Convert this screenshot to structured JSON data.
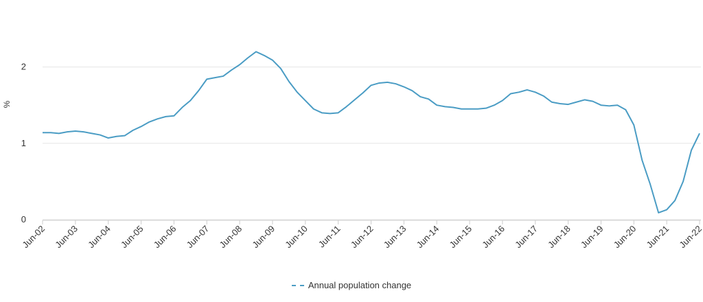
{
  "chart_data": {
    "type": "line",
    "title": "",
    "xlabel": "",
    "ylabel": "%",
    "ylim": [
      0,
      2.5
    ],
    "y_ticks": [
      0,
      1,
      2
    ],
    "y_tick_labels": [
      "0",
      "1",
      "2"
    ],
    "x_tick_labels": [
      "Jun-02",
      "Jun-03",
      "Jun-04",
      "Jun-05",
      "Jun-06",
      "Jun-07",
      "Jun-08",
      "Jun-09",
      "Jun-10",
      "Jun-11",
      "Jun-12",
      "Jun-13",
      "Jun-14",
      "Jun-15",
      "Jun-16",
      "Jun-17",
      "Jun-18",
      "Jun-19",
      "Jun-20",
      "Jun-21",
      "Jun-22"
    ],
    "x_start": "Jun-02",
    "x_end": "Jun-22",
    "grid": "horizontal",
    "legend_position": "bottom-center",
    "series": [
      {
        "name": "Annual population change",
        "color": "#4a9cc4",
        "values": [
          1.14,
          1.14,
          1.13,
          1.15,
          1.16,
          1.15,
          1.13,
          1.11,
          1.07,
          1.09,
          1.1,
          1.17,
          1.22,
          1.28,
          1.32,
          1.35,
          1.36,
          1.47,
          1.56,
          1.69,
          1.84,
          1.86,
          1.88,
          1.96,
          2.03,
          2.12,
          2.2,
          2.15,
          2.09,
          1.98,
          1.81,
          1.67,
          1.56,
          1.45,
          1.4,
          1.39,
          1.4,
          1.48,
          1.57,
          1.66,
          1.76,
          1.79,
          1.8,
          1.78,
          1.74,
          1.69,
          1.61,
          1.58,
          1.5,
          1.48,
          1.47,
          1.45,
          1.45,
          1.45,
          1.46,
          1.5,
          1.56,
          1.65,
          1.67,
          1.7,
          1.67,
          1.62,
          1.54,
          1.52,
          1.51,
          1.54,
          1.57,
          1.55,
          1.5,
          1.49,
          1.5,
          1.44,
          1.24,
          0.78,
          0.46,
          0.09,
          0.13,
          0.25,
          0.5,
          0.91,
          1.13
        ]
      }
    ]
  }
}
